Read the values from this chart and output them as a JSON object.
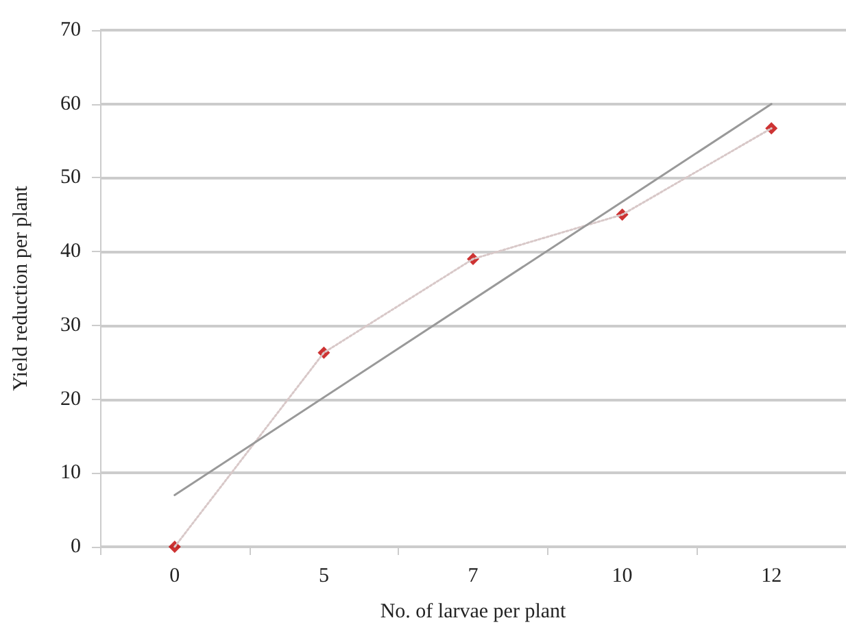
{
  "chart_data": {
    "type": "line",
    "xlabel": "No. of larvae per plant",
    "ylabel": "Yield reduction per plant",
    "categories": [
      "0",
      "5",
      "7",
      "10",
      "12"
    ],
    "series": [
      {
        "color": "#d8c8c8",
        "values": [
          0,
          26.3,
          39,
          45,
          56.7
        ],
        "line_style": "dotted",
        "marker": "none"
      },
      {
        "type": "scatter",
        "color": "#c00000",
        "values": [
          0,
          26.3,
          39,
          45,
          56.7
        ],
        "marker": "diamond"
      },
      {
        "color": "#999999",
        "x": [
          "0",
          "12"
        ],
        "values": [
          7,
          60
        ],
        "line_style": "solid",
        "marker": "none"
      }
    ],
    "ylim": [
      0,
      70
    ],
    "yticks": [
      0,
      10,
      20,
      30,
      40,
      50,
      60,
      70
    ],
    "grid": "y"
  }
}
